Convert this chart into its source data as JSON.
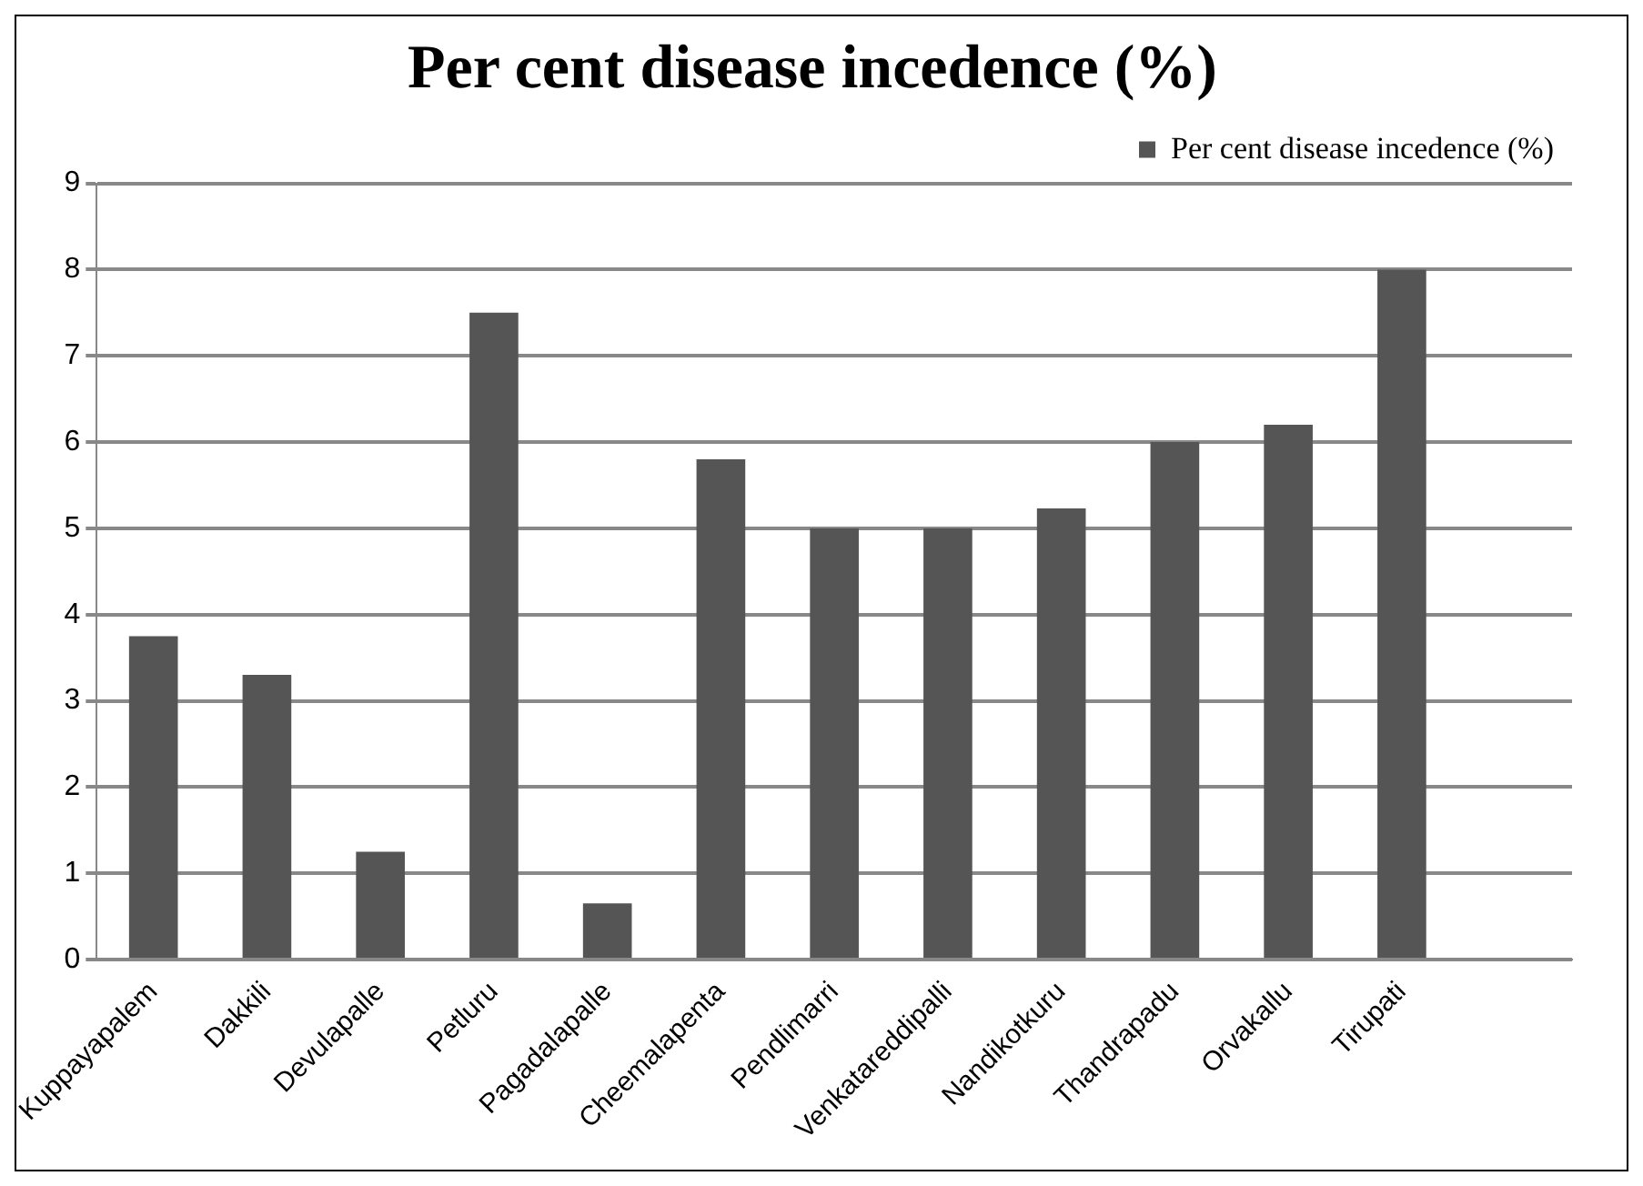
{
  "chart_data": {
    "type": "bar",
    "title": "Per cent disease incedence (%)",
    "categories": [
      "Kuppayapalem",
      "Dakkili",
      "Devulapalle",
      "Petluru",
      "Pagadalapalle",
      "Cheemalapenta",
      "Pendlimarri",
      "Venkatareddipalli",
      "Nandikotkuru",
      "Thandrapadu",
      "Orvakallu",
      "Tirupati",
      null
    ],
    "series": [
      {
        "name": "Per cent disease incedence (%)",
        "color": "#555555",
        "values": [
          3.75,
          3.3,
          1.25,
          7.5,
          0.65,
          5.8,
          5,
          5,
          5.23,
          6,
          6.2,
          8,
          null
        ]
      }
    ],
    "ylim": [
      0,
      9
    ],
    "yticks": [
      0,
      1,
      2,
      3,
      4,
      5,
      6,
      7,
      8,
      9
    ],
    "grid": "y",
    "legend": "top right"
  }
}
